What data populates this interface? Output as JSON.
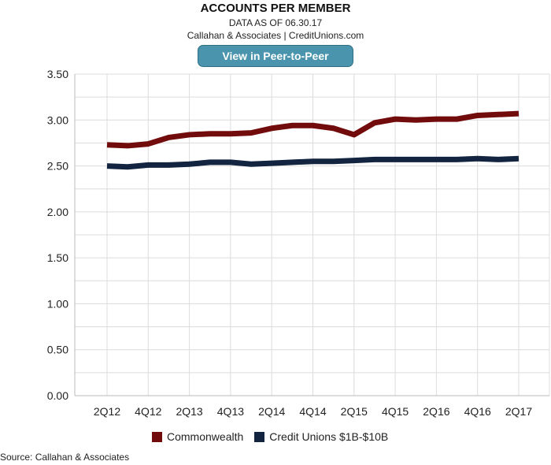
{
  "header": {
    "title": "ACCOUNTS PER MEMBER",
    "date": "DATA AS OF 06.30.17",
    "attribution": "Callahan & Associates | CreditUnions.com",
    "button": "View in Peer-to-Peer"
  },
  "source": "Source: Callahan & Associates",
  "chart_data": {
    "type": "line",
    "title": "ACCOUNTS PER MEMBER",
    "ylim": [
      0,
      3.5
    ],
    "yticks": [
      "0.00",
      "0.50",
      "1.00",
      "1.50",
      "2.00",
      "2.50",
      "3.00",
      "3.50"
    ],
    "categories": [
      "2Q12",
      "3Q12",
      "4Q12",
      "1Q13",
      "2Q13",
      "3Q13",
      "4Q13",
      "1Q14",
      "2Q14",
      "3Q14",
      "4Q14",
      "1Q15",
      "2Q15",
      "3Q15",
      "4Q15",
      "1Q16",
      "2Q16",
      "3Q16",
      "4Q16",
      "1Q17",
      "2Q17"
    ],
    "xticks": [
      "2Q12",
      "4Q12",
      "2Q13",
      "4Q13",
      "2Q14",
      "4Q14",
      "2Q15",
      "4Q15",
      "2Q16",
      "4Q16",
      "2Q17"
    ],
    "series": [
      {
        "name": "Commonwealth",
        "color": "#720c0c",
        "values": [
          2.73,
          2.72,
          2.74,
          2.81,
          2.84,
          2.85,
          2.85,
          2.86,
          2.91,
          2.94,
          2.94,
          2.91,
          2.84,
          2.97,
          3.01,
          3.0,
          3.01,
          3.01,
          3.05,
          3.06,
          3.07
        ]
      },
      {
        "name": "Credit Unions $1B-$10B",
        "color": "#12243f",
        "values": [
          2.5,
          2.49,
          2.51,
          2.51,
          2.52,
          2.54,
          2.54,
          2.52,
          2.53,
          2.54,
          2.55,
          2.55,
          2.56,
          2.57,
          2.57,
          2.57,
          2.57,
          2.57,
          2.58,
          2.57,
          2.58
        ]
      }
    ],
    "grid": true,
    "legend": "bottom"
  }
}
